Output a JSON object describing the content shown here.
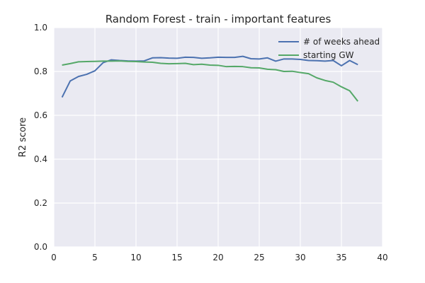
{
  "chart_data": {
    "type": "line",
    "title": "Random Forest - train - important features",
    "xlabel": "",
    "ylabel": "R2 score",
    "xlim": [
      0,
      40
    ],
    "ylim": [
      0.0,
      1.0
    ],
    "xticks": [
      0,
      5,
      10,
      15,
      20,
      25,
      30,
      35,
      40
    ],
    "yticks": [
      0.0,
      0.2,
      0.4,
      0.6,
      0.8,
      1.0
    ],
    "xtick_labels": [
      "0",
      "5",
      "10",
      "15",
      "20",
      "25",
      "30",
      "35",
      "40"
    ],
    "ytick_labels": [
      "0.0",
      "0.2",
      "0.4",
      "0.6",
      "0.8",
      "1.0"
    ],
    "grid": true,
    "legend_position": "top-right",
    "series": [
      {
        "name": "# of weeks ahead",
        "color": "#4c72b0",
        "x": [
          1,
          2,
          3,
          4,
          5,
          6,
          7,
          8,
          9,
          10,
          11,
          12,
          13,
          14,
          15,
          16,
          17,
          18,
          19,
          20,
          21,
          22,
          23,
          24,
          25,
          26,
          27,
          28,
          29,
          30,
          31,
          32,
          33,
          34,
          35,
          36,
          37
        ],
        "y": [
          0.682,
          0.757,
          0.777,
          0.787,
          0.803,
          0.84,
          0.853,
          0.85,
          0.848,
          0.847,
          0.848,
          0.862,
          0.863,
          0.861,
          0.86,
          0.865,
          0.864,
          0.86,
          0.862,
          0.865,
          0.864,
          0.864,
          0.869,
          0.858,
          0.857,
          0.862,
          0.847,
          0.857,
          0.857,
          0.855,
          0.85,
          0.849,
          0.847,
          0.85,
          0.826,
          0.85,
          0.831
        ]
      },
      {
        "name": "starting GW",
        "color": "#55a868",
        "x": [
          1,
          2,
          3,
          4,
          5,
          6,
          7,
          8,
          9,
          10,
          11,
          12,
          13,
          14,
          15,
          16,
          17,
          18,
          19,
          20,
          21,
          22,
          23,
          24,
          25,
          26,
          27,
          28,
          29,
          30,
          31,
          32,
          33,
          34,
          35,
          36,
          37
        ],
        "y": [
          0.829,
          0.836,
          0.844,
          0.845,
          0.846,
          0.847,
          0.847,
          0.848,
          0.846,
          0.845,
          0.843,
          0.842,
          0.837,
          0.835,
          0.836,
          0.837,
          0.831,
          0.833,
          0.829,
          0.828,
          0.822,
          0.823,
          0.822,
          0.817,
          0.816,
          0.81,
          0.808,
          0.8,
          0.801,
          0.795,
          0.79,
          0.771,
          0.759,
          0.751,
          0.73,
          0.712,
          0.664
        ]
      }
    ]
  }
}
